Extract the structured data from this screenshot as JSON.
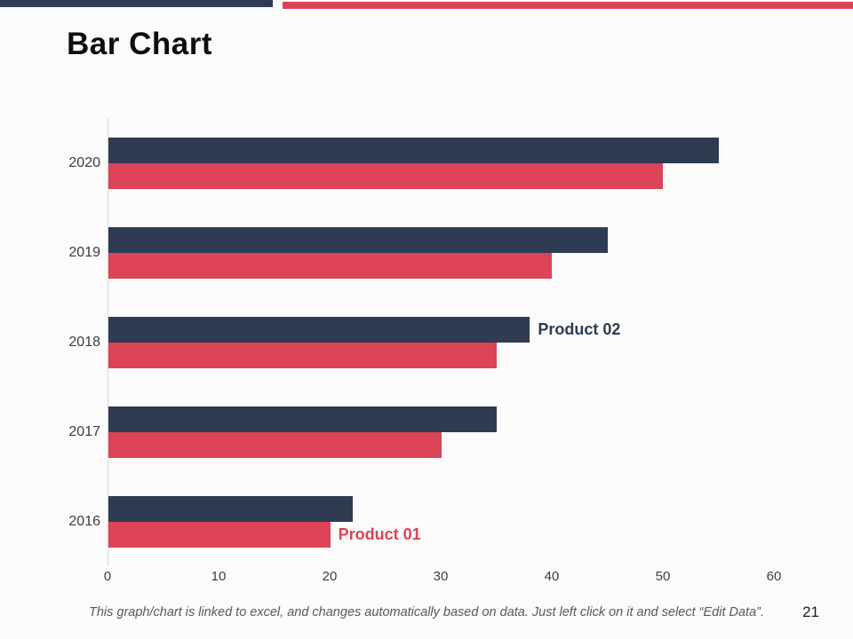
{
  "slide": {
    "title": "Bar Chart",
    "page_number": "21",
    "footer_note": "This graph/chart is linked to excel, and changes automatically based on data.  Just left click on it and select “Edit Data”.",
    "accent_navy": "#2f3b52",
    "accent_red": "#dc4356"
  },
  "chart_data": {
    "type": "bar",
    "orientation": "horizontal",
    "title": "Bar Chart",
    "categories": [
      "2020",
      "2019",
      "2018",
      "2017",
      "2016"
    ],
    "series": [
      {
        "name": "Product 02",
        "color": "#2f3b52",
        "values": [
          55,
          45,
          38,
          35,
          22
        ]
      },
      {
        "name": "Product 01",
        "color": "#dc4356",
        "values": [
          50,
          40,
          35,
          30,
          20
        ]
      }
    ],
    "xlim": [
      0,
      60
    ],
    "x_ticks": [
      0,
      10,
      20,
      30,
      40,
      50,
      60
    ],
    "grid": "off",
    "legend_position": "inline-bar-labels",
    "series_label_positions": [
      {
        "series": "Product 02",
        "category": "2018"
      },
      {
        "series": "Product 01",
        "category": "2016"
      }
    ]
  }
}
